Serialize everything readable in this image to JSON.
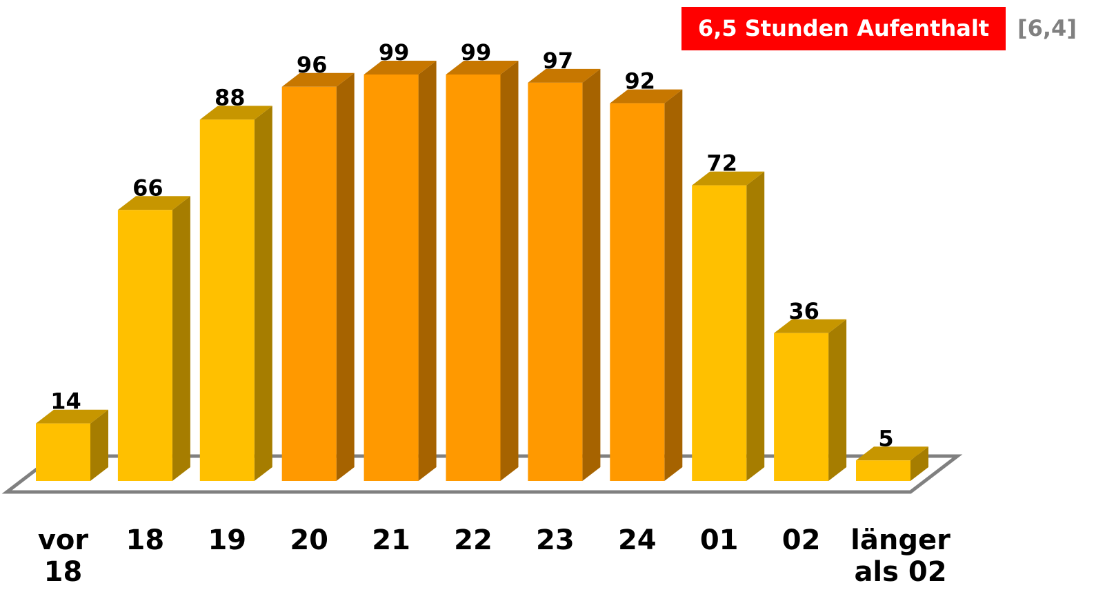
{
  "chart_data": {
    "type": "bar3d",
    "categories": [
      "vor\n18",
      "18",
      "19",
      "20",
      "21",
      "22",
      "23",
      "24",
      "01",
      "02",
      "länger\nals 02"
    ],
    "values": [
      14,
      66,
      88,
      96,
      99,
      99,
      97,
      92,
      72,
      36,
      5
    ],
    "colors": [
      "#FFC000",
      "#FFC000",
      "#FFC000",
      "#FF9900",
      "#FF9900",
      "#FF9900",
      "#FF9900",
      "#FF9900",
      "#FFC000",
      "#FFC000",
      "#FFC000"
    ],
    "annotation": "6,5 Stunden Aufenthalt",
    "annotation_color": "#FF0000",
    "note": "[6,4]"
  }
}
